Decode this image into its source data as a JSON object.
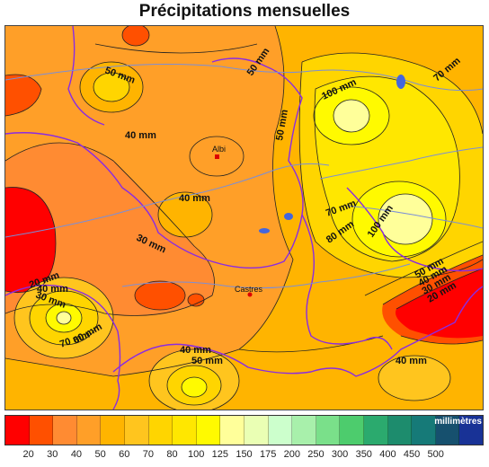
{
  "title": "Précipitations mensuelles",
  "unit_label": "millimètres",
  "legend": {
    "colors": [
      "#ff0000",
      "#ff5000",
      "#ff8b32",
      "#ff9f28",
      "#ffb400",
      "#ffc51e",
      "#ffd500",
      "#ffe700",
      "#fffa00",
      "#ffff9a",
      "#eaffb4",
      "#ccffcc",
      "#a8f0ab",
      "#7ae08a",
      "#4dcc6d",
      "#2baa6e",
      "#1d8c6d",
      "#167a78",
      "#16506e",
      "#183296"
    ],
    "ticks": [
      "20",
      "30",
      "40",
      "50",
      "60",
      "70",
      "80",
      "100",
      "125",
      "150",
      "175",
      "200",
      "250",
      "300",
      "350",
      "400",
      "450",
      "500"
    ]
  },
  "contour_labels": [
    {
      "text": "50 mm"
    },
    {
      "text": "50 mm"
    },
    {
      "text": "40 mm"
    },
    {
      "text": "50 mm"
    },
    {
      "text": "100 mm"
    },
    {
      "text": "70 mm"
    },
    {
      "text": "40 mm"
    },
    {
      "text": "30 mm"
    },
    {
      "text": "70 mm"
    },
    {
      "text": "100 mm"
    },
    {
      "text": "80 mm"
    },
    {
      "text": "20 mm"
    },
    {
      "text": "30 mm"
    },
    {
      "text": "40 mm"
    },
    {
      "text": "70 mm"
    },
    {
      "text": "60 mm"
    },
    {
      "text": "40 mm"
    },
    {
      "text": "50 mm"
    },
    {
      "text": "50 mm"
    },
    {
      "text": "40 mm"
    },
    {
      "text": "30 mm"
    },
    {
      "text": "20 mm"
    },
    {
      "text": "40 mm"
    }
  ],
  "cities": [
    {
      "name": "Albi"
    },
    {
      "name": "Castres"
    }
  ]
}
